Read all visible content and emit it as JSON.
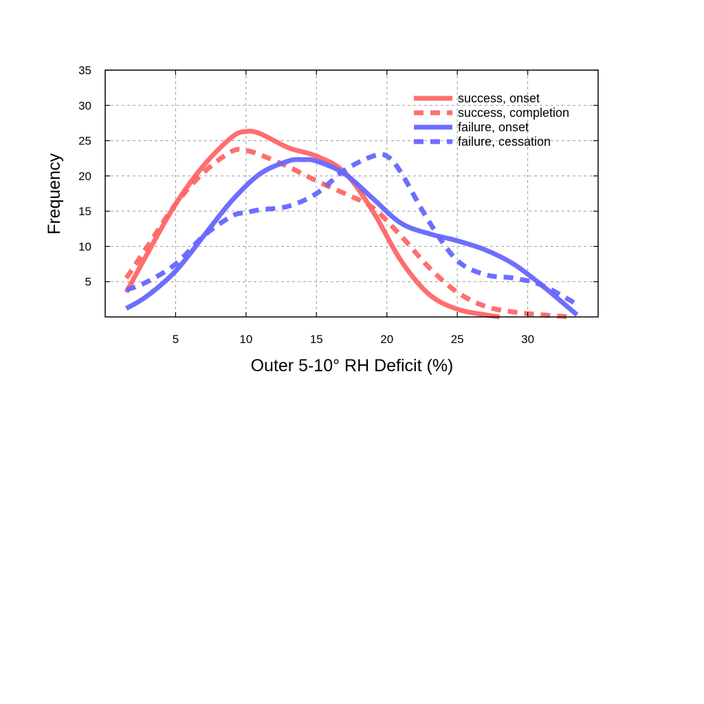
{
  "chart_data": {
    "type": "line",
    "title": "",
    "xlabel": "Outer 5-10° RH Deficit (%)",
    "ylabel": "Frequency",
    "xlim": [
      0,
      35
    ],
    "ylim": [
      0,
      35
    ],
    "xticks": [
      5,
      10,
      15,
      20,
      25,
      30
    ],
    "yticks": [
      5,
      10,
      15,
      20,
      25,
      30,
      35
    ],
    "grid": true,
    "legend_position": "top-right",
    "series": [
      {
        "name": "success, onset",
        "color": "#ff6666",
        "line_style": "solid",
        "x": [
          1.5,
          3,
          5,
          7,
          9,
          10,
          11,
          13,
          15,
          17,
          19,
          21,
          23,
          25,
          27,
          28
        ],
        "y": [
          3.5,
          9,
          16,
          21.5,
          25.5,
          26.3,
          26,
          24,
          22.8,
          20.5,
          15,
          8,
          3.2,
          1.1,
          0.3,
          0
        ]
      },
      {
        "name": "success, completion",
        "color": "#ff6666",
        "line_style": "dashed",
        "x": [
          1.5,
          3,
          5,
          7,
          9,
          10,
          11,
          13,
          15,
          17,
          19,
          21,
          23,
          25,
          27,
          29,
          31,
          33
        ],
        "y": [
          5.5,
          10,
          16,
          20.5,
          23.5,
          23.6,
          23,
          21.3,
          19.3,
          17.5,
          15.5,
          11.5,
          7,
          3.5,
          1.5,
          0.7,
          0.3,
          0
        ]
      },
      {
        "name": "failure, onset",
        "color": "#6666ff",
        "line_style": "solid",
        "x": [
          1.5,
          3,
          5,
          7,
          9,
          11,
          13,
          14,
          15,
          17,
          19,
          21,
          23,
          25,
          27,
          29,
          31,
          33.5
        ],
        "y": [
          1.2,
          3,
          6.5,
          11.5,
          16.5,
          20.3,
          22.1,
          22.3,
          22.1,
          20.3,
          16.8,
          13.3,
          11.8,
          10.8,
          9.5,
          7.5,
          4.5,
          0.3
        ]
      },
      {
        "name": "failure, cessation",
        "color": "#6666ff",
        "line_style": "dashed",
        "x": [
          1.5,
          3,
          5,
          7,
          9,
          10,
          11,
          13,
          15,
          17,
          19,
          20,
          21,
          23,
          25,
          27,
          29,
          31,
          33.5
        ],
        "y": [
          3.8,
          5,
          7.5,
          11.5,
          14.3,
          14.8,
          15.2,
          15.7,
          17.5,
          20.8,
          22.8,
          22.8,
          20.5,
          13.5,
          8,
          6,
          5.5,
          4.5,
          1.8
        ]
      }
    ]
  }
}
